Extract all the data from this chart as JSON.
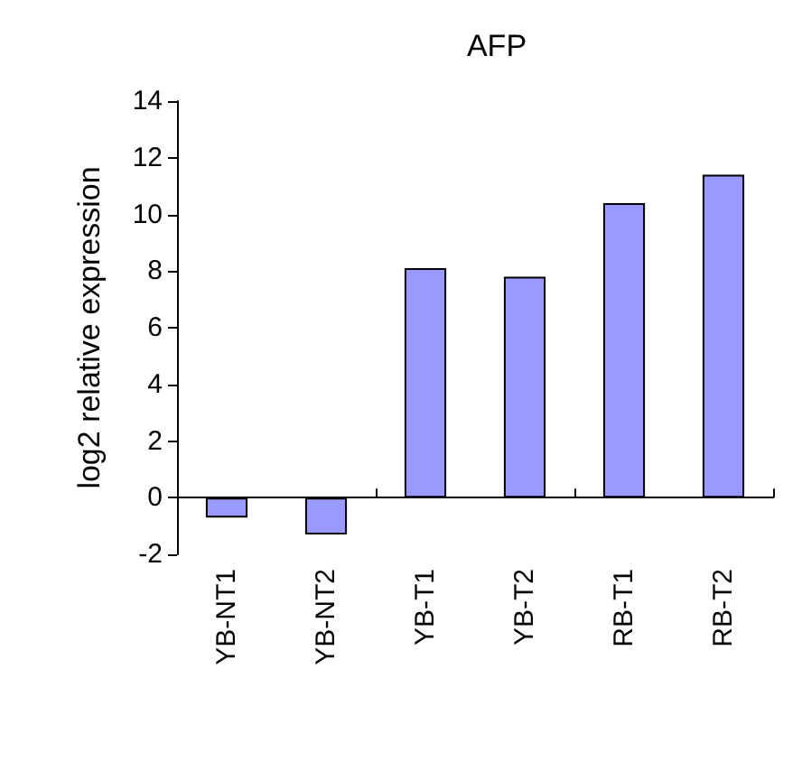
{
  "chart_data": {
    "type": "bar",
    "title": "AFP",
    "ylabel": "log2 relative expression",
    "categories": [
      "YB-NT1",
      "YB-NT2",
      "YB-T1",
      "YB-T2",
      "RB-T1",
      "RB-T2"
    ],
    "values": [
      -0.7,
      -1.3,
      8.1,
      7.8,
      10.4,
      11.4
    ],
    "color": "#9999ff",
    "ylim": [
      -2,
      14
    ],
    "yticks": [
      -2,
      0,
      2,
      4,
      6,
      8,
      10,
      12,
      14
    ]
  }
}
